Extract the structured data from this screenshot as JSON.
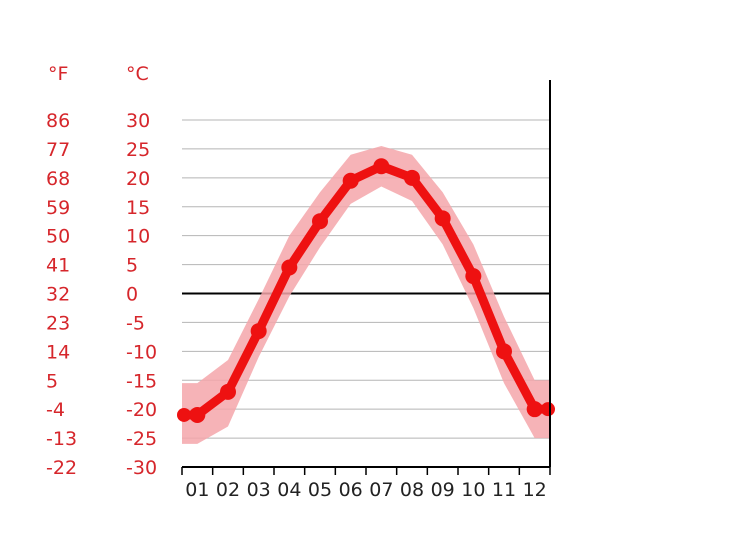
{
  "chart_data": {
    "type": "line",
    "categories": [
      "01",
      "02",
      "03",
      "04",
      "05",
      "06",
      "07",
      "08",
      "09",
      "10",
      "11",
      "12"
    ],
    "series": [
      {
        "values": [
          -21,
          -17,
          -6.5,
          4.5,
          12.5,
          19.5,
          22,
          20,
          13,
          3,
          -10,
          -20
        ],
        "band_upper": [
          -15.5,
          -11.5,
          -1,
          10,
          17.5,
          24,
          25.5,
          24,
          17.5,
          8.5,
          -4,
          -15
        ],
        "band_lower": [
          -26,
          -23,
          -11,
          -0.5,
          8,
          15.5,
          18.5,
          16,
          8.5,
          -2.5,
          -15.5,
          -25
        ]
      }
    ],
    "celsius_unit": "°C",
    "fahrenheit_unit": "°F",
    "celsius_ticks": [
      "30",
      "25",
      "20",
      "15",
      "10",
      "5",
      "0",
      "-5",
      "-10",
      "-15",
      "-20",
      "-25",
      "-30"
    ],
    "fahrenheit_ticks": [
      "86",
      "77",
      "68",
      "59",
      "50",
      "41",
      "32",
      "23",
      "14",
      "5",
      "-4",
      "-13",
      "-22"
    ],
    "ylim": [
      -30,
      30
    ],
    "grid": true,
    "colors": {
      "line": "#ee1111",
      "band": "#f4a6aa",
      "labels": "#d6262b",
      "grid": "#b5b5b5",
      "zero": "#000000"
    }
  }
}
